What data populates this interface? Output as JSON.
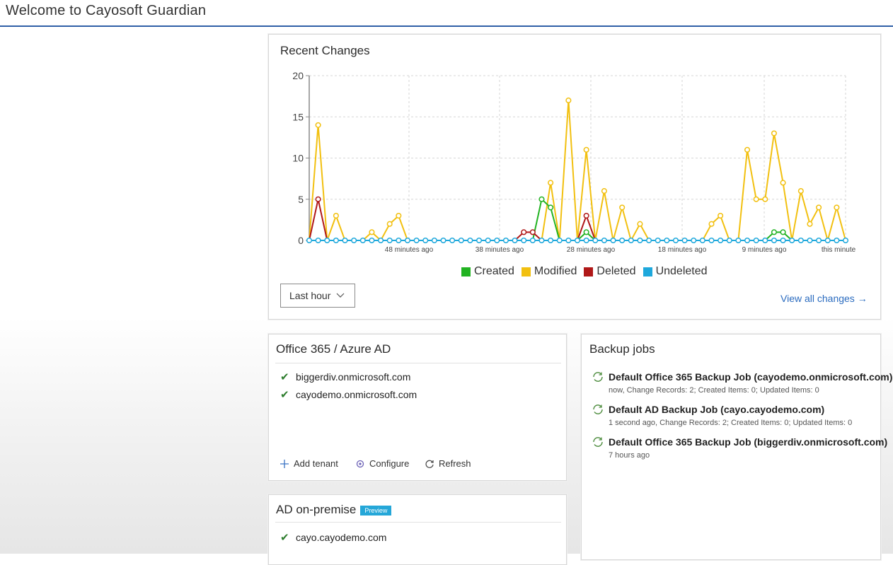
{
  "app": {
    "title": "Welcome to Cayosoft Guardian"
  },
  "recent_changes": {
    "title": "Recent Changes",
    "range_select": "Last hour",
    "view_all": "View all changes →"
  },
  "chart_data": {
    "type": "line",
    "title": "Recent Changes",
    "x_tick_labels": [
      "48 minutes ago",
      "38 minutes ago",
      "28 minutes ago",
      "18 minutes ago",
      "9 minutes ago",
      "this minute"
    ],
    "ylim": [
      0,
      20
    ],
    "y_ticks": [
      0,
      5,
      10,
      15,
      20
    ],
    "grid": true,
    "legend_position": "bottom",
    "series": [
      {
        "name": "Created",
        "color": "#22b322",
        "values": [
          0,
          0,
          0,
          0,
          0,
          0,
          0,
          0,
          0,
          0,
          0,
          0,
          0,
          0,
          0,
          0,
          0,
          0,
          0,
          0,
          0,
          0,
          0,
          0,
          0,
          0,
          5,
          4,
          0,
          0,
          0,
          1,
          0,
          0,
          0,
          0,
          0,
          0,
          0,
          0,
          0,
          0,
          0,
          0,
          0,
          0,
          0,
          0,
          0,
          0,
          0,
          0,
          1,
          1,
          0,
          0,
          0,
          0,
          0,
          0,
          0
        ]
      },
      {
        "name": "Modified",
        "color": "#f2c010",
        "values": [
          0,
          14,
          0,
          3,
          0,
          0,
          0,
          1,
          0,
          2,
          3,
          0,
          0,
          0,
          0,
          0,
          0,
          0,
          0,
          0,
          0,
          0,
          0,
          0,
          0,
          0,
          0,
          7,
          0,
          17,
          0,
          11,
          0,
          6,
          0,
          4,
          0,
          2,
          0,
          0,
          0,
          0,
          0,
          0,
          0,
          2,
          3,
          0,
          0,
          11,
          5,
          5,
          13,
          7,
          0,
          6,
          2,
          4,
          0,
          4,
          0
        ]
      },
      {
        "name": "Deleted",
        "color": "#b01818",
        "values": [
          0,
          5,
          0,
          0,
          0,
          0,
          0,
          0,
          0,
          0,
          0,
          0,
          0,
          0,
          0,
          0,
          0,
          0,
          0,
          0,
          0,
          0,
          0,
          0,
          1,
          1,
          0,
          0,
          0,
          0,
          0,
          3,
          0,
          0,
          0,
          0,
          0,
          0,
          0,
          0,
          0,
          0,
          0,
          0,
          0,
          0,
          0,
          0,
          0,
          0,
          0,
          0,
          0,
          0,
          0,
          0,
          0,
          0,
          0,
          0,
          0
        ]
      },
      {
        "name": "Undeleted",
        "color": "#1ea8dc",
        "values": [
          0,
          0,
          0,
          0,
          0,
          0,
          0,
          0,
          0,
          0,
          0,
          0,
          0,
          0,
          0,
          0,
          0,
          0,
          0,
          0,
          0,
          0,
          0,
          0,
          0,
          0,
          0,
          0,
          0,
          0,
          0,
          0,
          0,
          0,
          0,
          0,
          0,
          0,
          0,
          0,
          0,
          0,
          0,
          0,
          0,
          0,
          0,
          0,
          0,
          0,
          0,
          0,
          0,
          0,
          0,
          0,
          0,
          0,
          0,
          0,
          0
        ]
      }
    ]
  },
  "office365": {
    "title": "Office 365 / Azure AD",
    "tenants": [
      "biggerdiv.onmicrosoft.com",
      "cayodemo.onmicrosoft.com"
    ],
    "add_tenant": "Add tenant",
    "configure": "Configure",
    "refresh": "Refresh"
  },
  "ad_onpremise": {
    "title": "AD on-premise",
    "badge": "Preview",
    "domains": [
      "cayo.cayodemo.com"
    ]
  },
  "backup_jobs": {
    "title": "Backup jobs",
    "jobs": [
      {
        "name": "Default Office 365 Backup Job (cayodemo.onmicrosoft.com)",
        "detail": "now, Change Records: 2; Created Items: 0; Updated Items: 0"
      },
      {
        "name": "Default AD Backup Job (cayo.cayodemo.com)",
        "detail": "1 second ago, Change Records: 2; Created Items: 0; Updated Items: 0"
      },
      {
        "name": "Default Office 365 Backup Job (biggerdiv.onmicrosoft.com)",
        "detail": "7 hours ago"
      }
    ]
  }
}
